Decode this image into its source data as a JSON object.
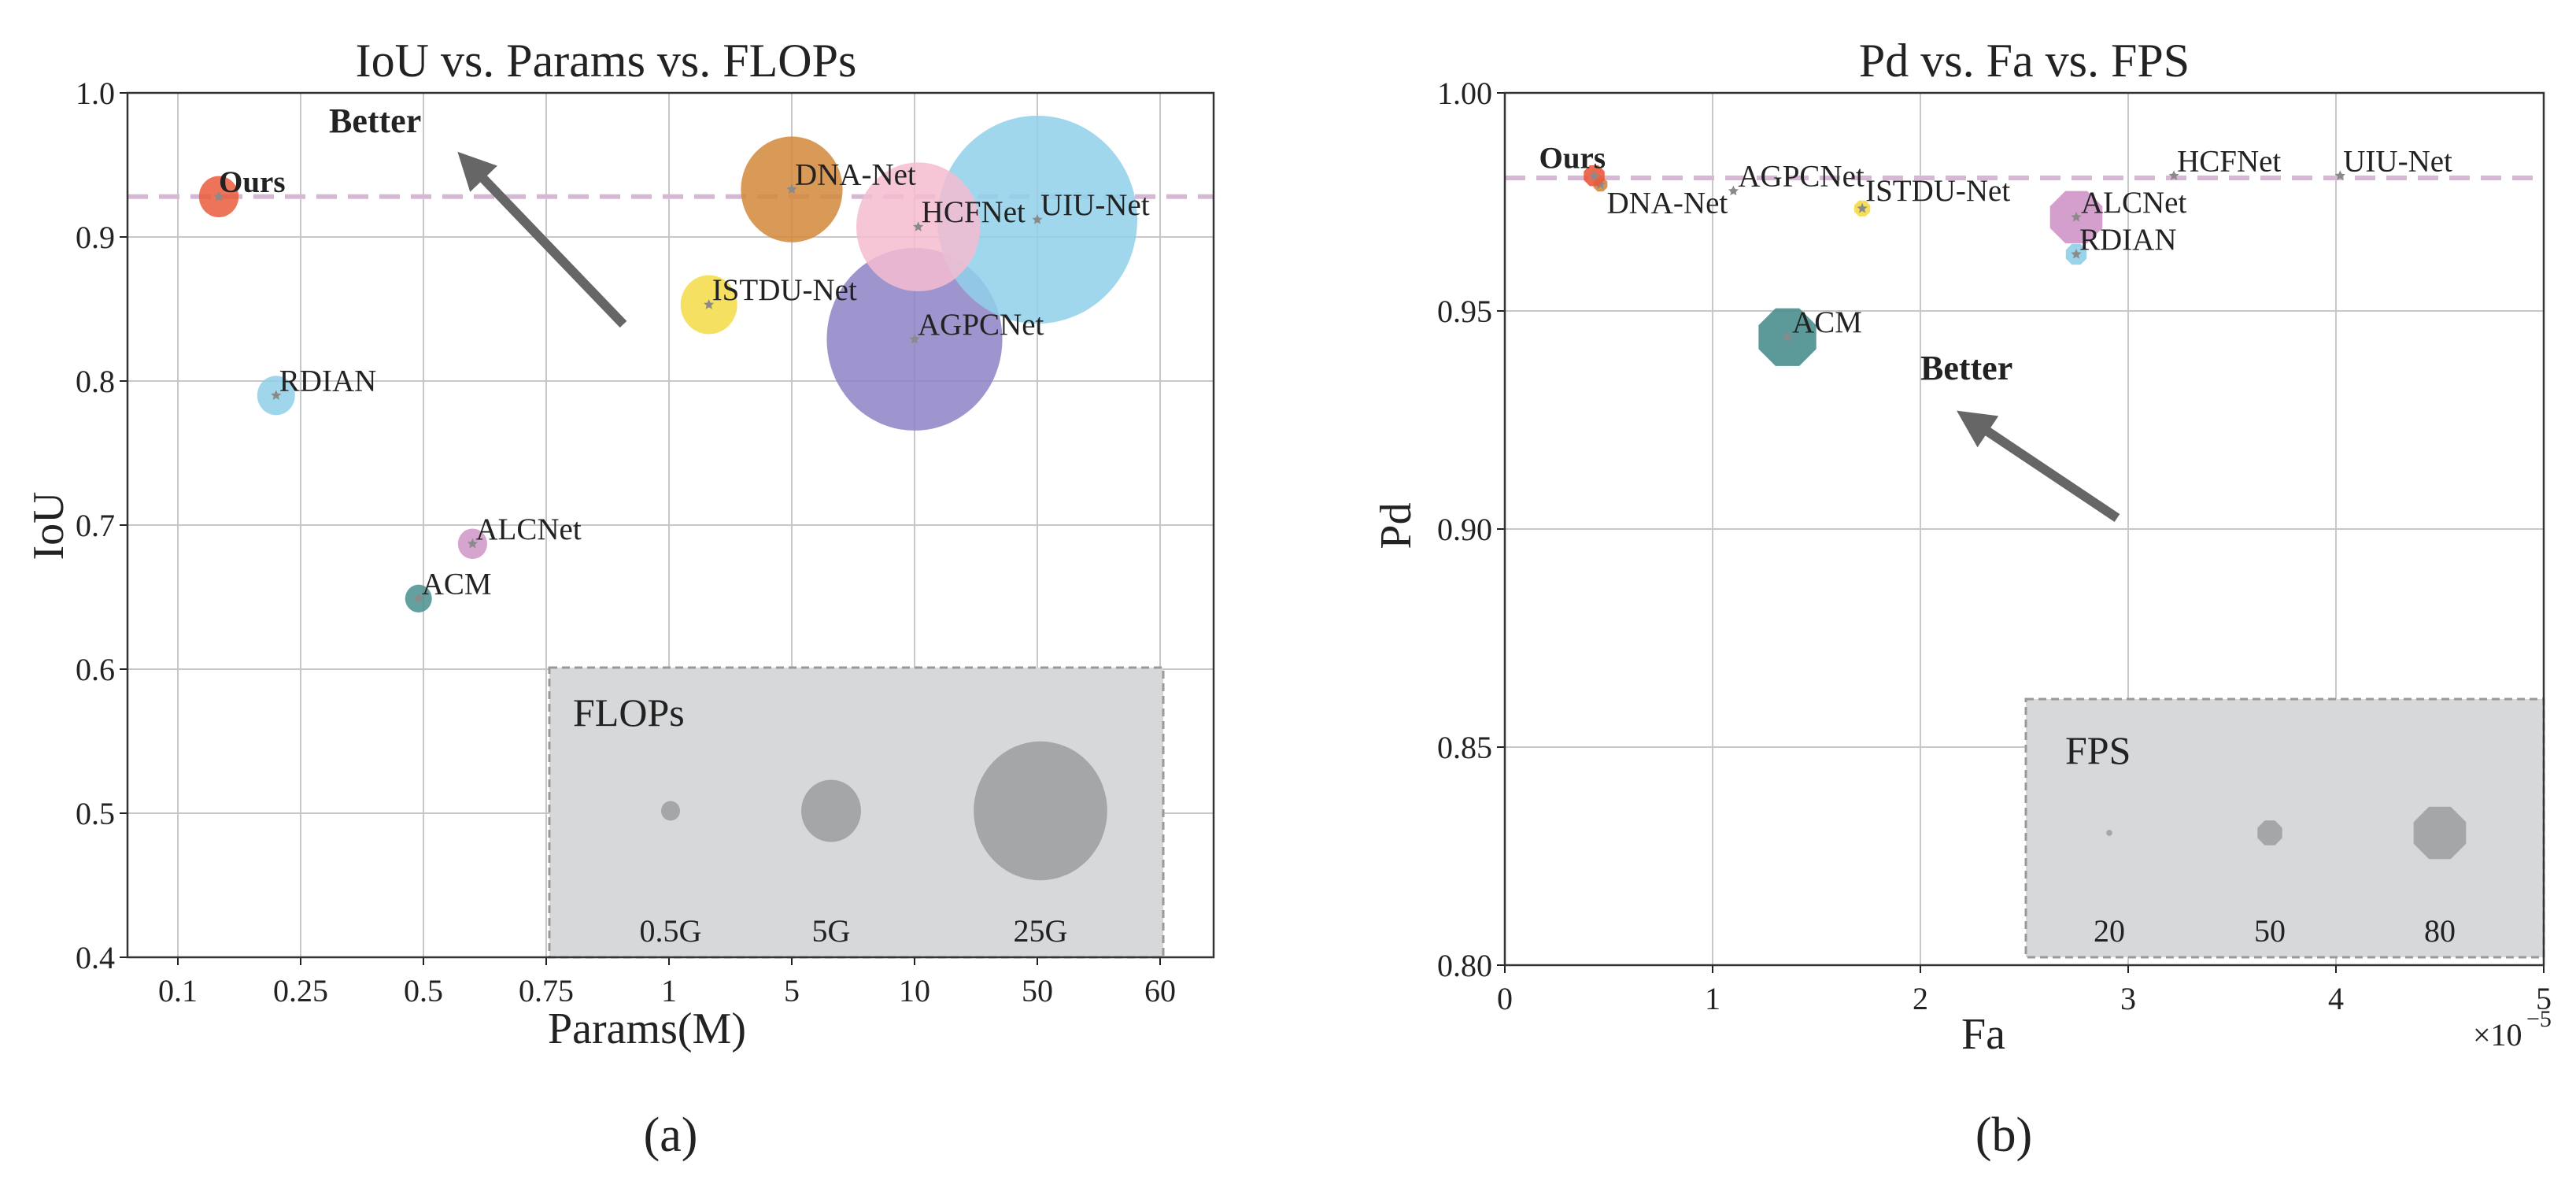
{
  "chart_data": [
    {
      "type": "scatter",
      "title": "IoU vs. Params vs. FLOPs",
      "xlabel": "Params(M)",
      "ylabel": "IoU",
      "caption": "(a)",
      "x_scale": "categorical",
      "x_ticks": [
        "0.1",
        "0.25",
        "0.5",
        "0.75",
        "1",
        "5",
        "10",
        "50",
        "60"
      ],
      "ylim": [
        0.4,
        1.0
      ],
      "y_ticks": [
        0.4,
        0.5,
        0.6,
        0.7,
        0.8,
        0.9,
        1.0
      ],
      "grid": true,
      "reference_line_y": 0.928,
      "annotation": "Better",
      "size_legend": {
        "title": "FLOPs",
        "entries": [
          {
            "label": "0.5G",
            "value": 0.5
          },
          {
            "label": "5G",
            "value": 5
          },
          {
            "label": "25G",
            "value": 25
          }
        ]
      },
      "points": [
        {
          "name": "Ours",
          "x": 0.15,
          "y": 0.928,
          "flops": 2.2,
          "color": "#ea5a3c",
          "bold": true
        },
        {
          "name": "RDIAN",
          "x": 0.22,
          "y": 0.79,
          "flops": 2.0,
          "color": "#8ecfe8",
          "bold": false
        },
        {
          "name": "ALCNet",
          "x": 0.6,
          "y": 0.687,
          "flops": 1.2,
          "color": "#cf95c7",
          "bold": false
        },
        {
          "name": "ACM",
          "x": 0.49,
          "y": 0.649,
          "flops": 1.0,
          "color": "#4a8f8f",
          "bold": false
        },
        {
          "name": "ISTDU-Net",
          "x": 2.3,
          "y": 0.853,
          "flops": 4.5,
          "color": "#f5da46",
          "bold": false
        },
        {
          "name": "DNA-Net",
          "x": 5.0,
          "y": 0.933,
          "flops": 14.5,
          "color": "#d2883b",
          "bold": false
        },
        {
          "name": "AGPCNet",
          "x": 10.0,
          "y": 0.829,
          "flops": 43.2,
          "color": "#8e83c5",
          "bold": false
        },
        {
          "name": "HCFNet",
          "x": 11.2,
          "y": 0.907,
          "flops": 21.5,
          "color": "#f4bcd0",
          "bold": false
        },
        {
          "name": "UIU-Net",
          "x": 50.0,
          "y": 0.912,
          "flops": 56.0,
          "color": "#8fd0ea",
          "bold": false
        }
      ]
    },
    {
      "type": "scatter",
      "title": "Pd vs. Fa vs. FPS",
      "xlabel": "Fa",
      "x_multiplier": "×10",
      "x_multiplier_exp": "−5",
      "ylabel": "Pd",
      "caption": "(b)",
      "xlim": [
        0,
        5
      ],
      "x_ticks": [
        0,
        1,
        2,
        3,
        4,
        5
      ],
      "ylim": [
        0.8,
        1.0
      ],
      "y_ticks": [
        "0.80",
        "0.85",
        "0.90",
        "0.95",
        "1.00"
      ],
      "grid": true,
      "reference_line_y": 0.9805,
      "annotation": "Better",
      "size_legend": {
        "title": "FPS",
        "entries": [
          {
            "label": "20",
            "value": 20
          },
          {
            "label": "50",
            "value": 50
          },
          {
            "label": "80",
            "value": 80
          }
        ]
      },
      "points": [
        {
          "name": "Ours",
          "x": 0.43,
          "y": 0.981,
          "fps": 45,
          "color": "#ea5a3c",
          "bold": true
        },
        {
          "name": "DNA-Net",
          "x": 0.46,
          "y": 0.979,
          "fps": 35,
          "color": "#d2883b",
          "bold": false
        },
        {
          "name": "AGPCNet",
          "x": 1.1,
          "y": 0.9775,
          "fps": 20,
          "color": "#8e83c5",
          "bold": false
        },
        {
          "name": "ISTDU-Net",
          "x": 1.72,
          "y": 0.9735,
          "fps": 38,
          "color": "#f5da46",
          "bold": false
        },
        {
          "name": "ACM",
          "x": 1.36,
          "y": 0.944,
          "fps": 85,
          "color": "#4a8f8f",
          "bold": false
        },
        {
          "name": "HCFNet",
          "x": 3.22,
          "y": 0.981,
          "fps": 20,
          "color": "#f4bcd0",
          "bold": false
        },
        {
          "name": "UIU-Net",
          "x": 4.02,
          "y": 0.981,
          "fps": 20,
          "color": "#8fd0ea",
          "bold": false
        },
        {
          "name": "ALCNet",
          "x": 2.75,
          "y": 0.9715,
          "fps": 80,
          "color": "#cf95c7",
          "bold": false
        },
        {
          "name": "RDIAN",
          "x": 2.75,
          "y": 0.963,
          "fps": 45,
          "color": "#8ecfe8",
          "bold": false
        }
      ]
    }
  ]
}
